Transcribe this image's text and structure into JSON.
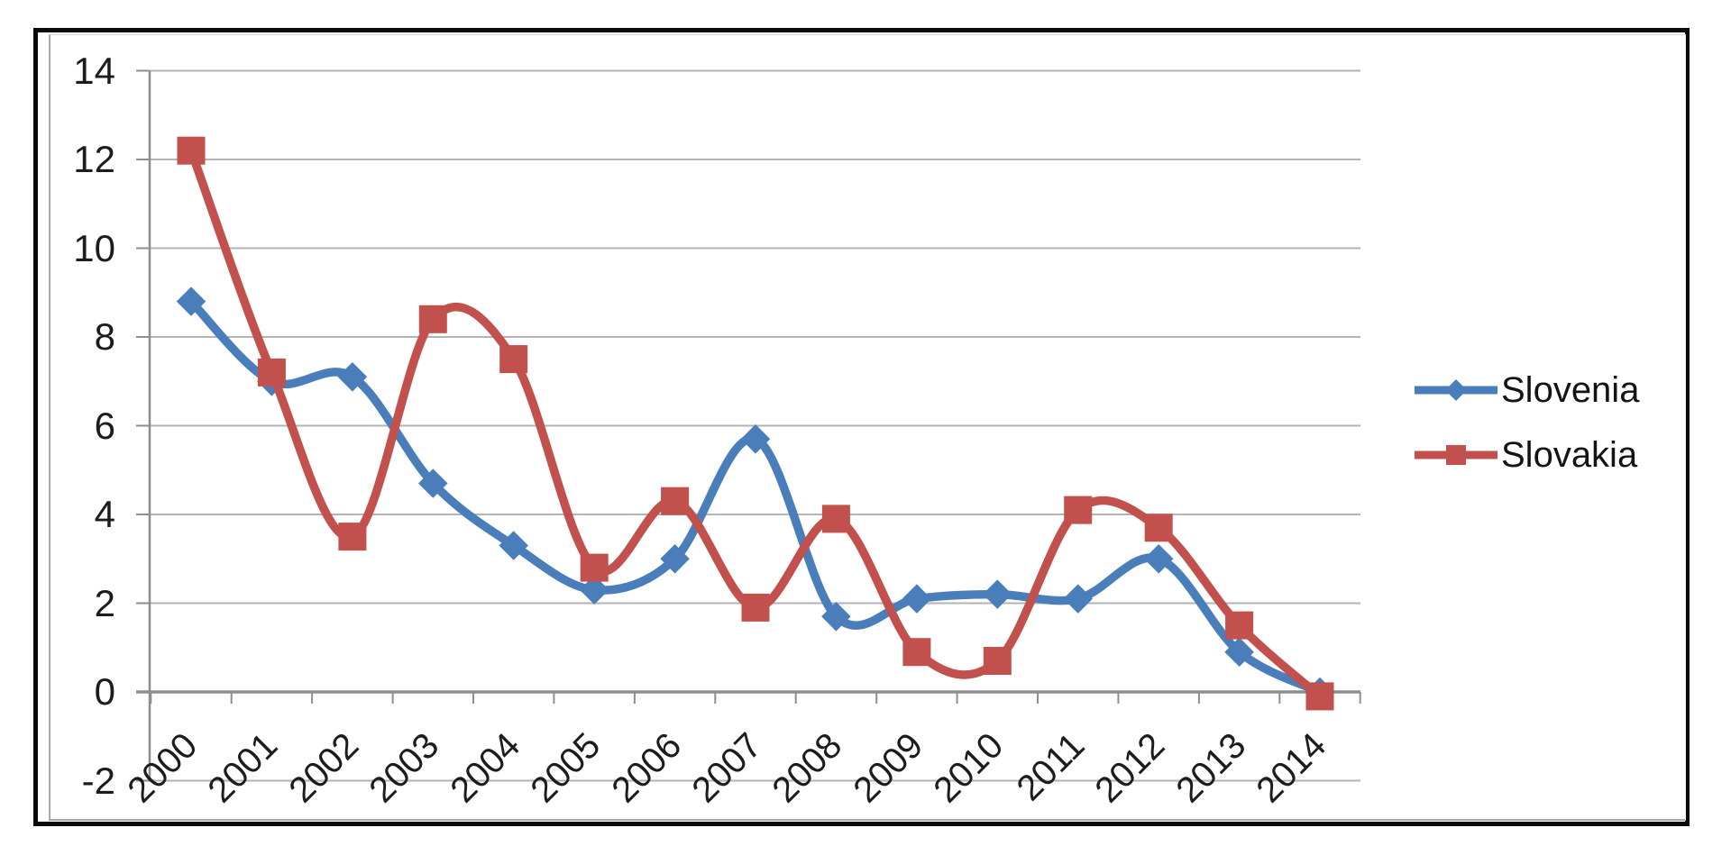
{
  "chart_data": {
    "type": "line",
    "title": "",
    "smoothed": true,
    "grid": true,
    "categories": [
      "2000",
      "2001",
      "2002",
      "2003",
      "2004",
      "2005",
      "2006",
      "2007",
      "2008",
      "2009",
      "2010",
      "2011",
      "2012",
      "2013",
      "2014"
    ],
    "series": [
      {
        "name": "Slovenia",
        "color": "#4A7EBB",
        "marker": "diamond",
        "values": [
          8.8,
          7.0,
          7.1,
          4.7,
          3.3,
          2.3,
          3.0,
          5.7,
          1.7,
          2.1,
          2.2,
          2.1,
          3.0,
          0.9,
          0.0
        ]
      },
      {
        "name": "Slovakia",
        "color": "#C2504D",
        "marker": "square",
        "values": [
          12.2,
          7.2,
          3.5,
          8.4,
          7.5,
          2.8,
          4.3,
          1.9,
          3.9,
          0.9,
          0.7,
          4.1,
          3.7,
          1.5,
          -0.1
        ]
      }
    ],
    "y_axis": {
      "min": -2,
      "max": 14,
      "step": 2,
      "tick_labels": [
        "14",
        "12",
        "10",
        "8",
        "6",
        "4",
        "2",
        "0",
        "-2"
      ]
    },
    "x_axis": {
      "label_rotation_deg": -45
    },
    "legend": {
      "position": "right",
      "entries": [
        "Slovenia",
        "Slovakia"
      ]
    },
    "colors": {
      "axis": "#8e8e8e",
      "gridline": "#b3b3b3",
      "text": "#1c1c1c",
      "frame": "#0a0a0a"
    }
  }
}
